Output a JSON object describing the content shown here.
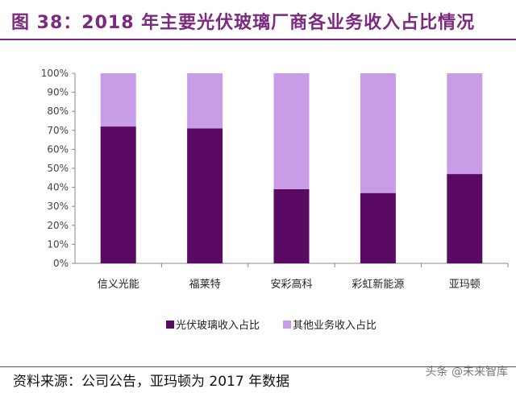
{
  "title": "图 38：2018 年主要光伏玻璃厂商各业务收入占比情况",
  "source": "资料来源：公司公告，亚玛顿为 2017 年数据",
  "watermark": "头条 @未来智库",
  "chart_data": {
    "type": "bar",
    "stacked": true,
    "categories": [
      "信义光能",
      "福莱特",
      "安彩高科",
      "彩虹新能源",
      "亚玛顿"
    ],
    "series": [
      {
        "name": "光伏玻璃收入占比",
        "color": "#5b0a63",
        "values": [
          72,
          71,
          39,
          37,
          47
        ]
      },
      {
        "name": "其他业务收入占比",
        "color": "#c99ce8",
        "values": [
          28,
          29,
          61,
          63,
          53
        ]
      }
    ],
    "ylim": [
      0,
      100
    ],
    "yticks": [
      "0%",
      "10%",
      "20%",
      "30%",
      "40%",
      "50%",
      "60%",
      "70%",
      "80%",
      "90%",
      "100%"
    ],
    "grid": false,
    "legend_position": "bottom"
  }
}
